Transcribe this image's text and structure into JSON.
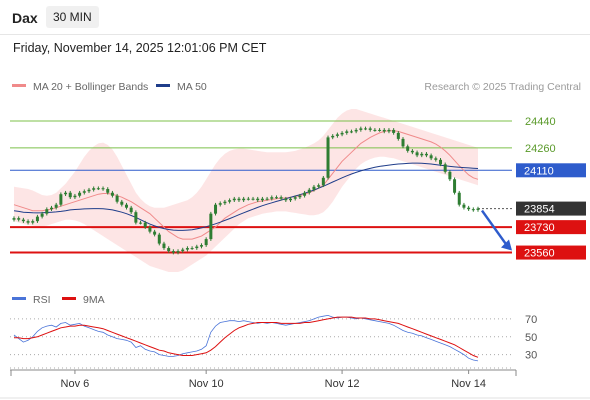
{
  "header": {
    "symbol": "Dax",
    "timeframe": "30 MIN",
    "datetime": "Friday, November 14, 2025 12:01:06 PM CET"
  },
  "colors": {
    "bb_fill": "#fde0e0",
    "ma20": "#f08a8a",
    "ma50": "#1f3d8a",
    "resistance": "#7cc04a",
    "pivot": "#2e5ccc",
    "support": "#dd1111",
    "candle": "#2e7d32",
    "rsi": "#4a74d8",
    "rsi_ma": "#dd1111",
    "arrow": "#2e5ccc"
  },
  "chart_data": [
    {
      "type": "candlestick",
      "x_tick_labels": [
        "Nov 6",
        "Nov 10",
        "Nov 12",
        "Nov 14"
      ],
      "legend": [
        {
          "label": "MA 20 + Bollinger Bands",
          "color": "#f08a8a"
        },
        {
          "label": "MA 50",
          "color": "#1f3d8a"
        }
      ],
      "watermark": "Research © 2025 Trading Central",
      "ylim": [
        23430,
        24580
      ],
      "close": [
        23790,
        23780,
        23770,
        23760,
        23770,
        23800,
        23820,
        23850,
        23860,
        23880,
        23950,
        23960,
        23930,
        23940,
        23960,
        23970,
        23980,
        23990,
        23990,
        23985,
        23960,
        23940,
        23900,
        23880,
        23860,
        23830,
        23760,
        23760,
        23730,
        23700,
        23680,
        23620,
        23590,
        23570,
        23560,
        23570,
        23580,
        23590,
        23590,
        23600,
        23610,
        23650,
        23820,
        23880,
        23890,
        23900,
        23910,
        23920,
        23910,
        23920,
        23920,
        23920,
        23910,
        23920,
        23920,
        23930,
        23930,
        23920,
        23910,
        23920,
        23930,
        23940,
        23960,
        23980,
        24000,
        24010,
        24060,
        24330,
        24340,
        24350,
        24360,
        24370,
        24370,
        24380,
        24390,
        24390,
        24380,
        24380,
        24380,
        24370,
        24380,
        24360,
        24320,
        24270,
        24240,
        24230,
        24210,
        24220,
        24210,
        24190,
        24180,
        24150,
        24100,
        24050,
        23960,
        23880,
        23860,
        23850,
        23845,
        23854
      ],
      "ma20": [
        23880,
        23870,
        23860,
        23850,
        23840,
        23840,
        23840,
        23845,
        23850,
        23860,
        23870,
        23880,
        23890,
        23900,
        23910,
        23920,
        23930,
        23940,
        23950,
        23955,
        23955,
        23950,
        23940,
        23930,
        23915,
        23900,
        23880,
        23860,
        23840,
        23820,
        23790,
        23760,
        23730,
        23700,
        23680,
        23660,
        23650,
        23650,
        23650,
        23660,
        23670,
        23690,
        23710,
        23730,
        23760,
        23790,
        23810,
        23830,
        23850,
        23865,
        23880,
        23890,
        23900,
        23905,
        23910,
        23915,
        23920,
        23925,
        23925,
        23930,
        23935,
        23940,
        23950,
        23960,
        23975,
        23990,
        24010,
        24050,
        24090,
        24130,
        24170,
        24200,
        24230,
        24260,
        24290,
        24310,
        24330,
        24345,
        24360,
        24370,
        24375,
        24375,
        24370,
        24360,
        24350,
        24340,
        24330,
        24320,
        24310,
        24300,
        24285,
        24265,
        24240,
        24210,
        24175,
        24140,
        24110,
        24080,
        24060,
        24050
      ],
      "ma50": [
        23840,
        23835,
        23830,
        23828,
        23826,
        23825,
        23826,
        23828,
        23830,
        23832,
        23835,
        23840,
        23845,
        23848,
        23850,
        23852,
        23853,
        23854,
        23854,
        23853,
        23850,
        23845,
        23838,
        23830,
        23820,
        23808,
        23795,
        23780,
        23765,
        23750,
        23738,
        23728,
        23720,
        23714,
        23710,
        23708,
        23708,
        23710,
        23713,
        23718,
        23725,
        23733,
        23742,
        23752,
        23763,
        23775,
        23787,
        23800,
        23813,
        23826,
        23838,
        23850,
        23862,
        23873,
        23883,
        23893,
        23902,
        23911,
        23920,
        23929,
        23938,
        23947,
        23957,
        23967,
        23978,
        23990,
        24003,
        24017,
        24032,
        24046,
        24060,
        24073,
        24085,
        24096,
        24106,
        24115,
        24123,
        24130,
        24136,
        24141,
        24145,
        24149,
        24152,
        24154,
        24156,
        24158,
        24158,
        24157,
        24155,
        24152,
        24148,
        24144,
        24140,
        24136,
        24133,
        24130,
        24128,
        24126,
        24124,
        24122
      ],
      "bb_upper": [
        24000,
        23995,
        23990,
        23985,
        23975,
        23960,
        23945,
        23940,
        23945,
        23960,
        23990,
        24020,
        24060,
        24100,
        24150,
        24200,
        24240,
        24270,
        24290,
        24295,
        24280,
        24250,
        24200,
        24140,
        24080,
        24020,
        23960,
        23920,
        23890,
        23870,
        23860,
        23860,
        23860,
        23870,
        23880,
        23890,
        23900,
        23910,
        23930,
        23960,
        24000,
        24050,
        24100,
        24150,
        24190,
        24220,
        24240,
        24250,
        24255,
        24255,
        24250,
        24245,
        24240,
        24235,
        24230,
        24230,
        24230,
        24230,
        24230,
        24235,
        24240,
        24250,
        24260,
        24275,
        24290,
        24310,
        24340,
        24380,
        24420,
        24460,
        24490,
        24510,
        24520,
        24520,
        24510,
        24500,
        24490,
        24480,
        24470,
        24460,
        24450,
        24440,
        24430,
        24420,
        24410,
        24400,
        24390,
        24380,
        24370,
        24360,
        24350,
        24340,
        24330,
        24320,
        24310,
        24300,
        24290,
        24280,
        24270,
        24260
      ],
      "bb_lower": [
        23770,
        23760,
        23750,
        23745,
        23740,
        23735,
        23735,
        23740,
        23750,
        23760,
        23770,
        23780,
        23780,
        23775,
        23765,
        23750,
        23730,
        23710,
        23690,
        23670,
        23650,
        23630,
        23610,
        23590,
        23570,
        23550,
        23530,
        23510,
        23490,
        23470,
        23460,
        23450,
        23440,
        23430,
        23430,
        23430,
        23440,
        23460,
        23480,
        23500,
        23520,
        23540,
        23570,
        23600,
        23630,
        23660,
        23690,
        23720,
        23750,
        23770,
        23790,
        23800,
        23810,
        23820,
        23825,
        23830,
        23835,
        23835,
        23835,
        23830,
        23825,
        23820,
        23815,
        23810,
        23810,
        23815,
        23830,
        23860,
        23900,
        23950,
        24000,
        24040,
        24080,
        24120,
        24150,
        24170,
        24185,
        24195,
        24200,
        24200,
        24195,
        24190,
        24180,
        24170,
        24160,
        24150,
        24140,
        24130,
        24120,
        24110,
        24100,
        24090,
        24080,
        24070,
        24060,
        24050,
        24040,
        24030,
        24020,
        24010
      ],
      "levels": [
        {
          "value": 24440,
          "label": "24440",
          "role": "resistance"
        },
        {
          "value": 24260,
          "label": "24260",
          "role": "resistance"
        },
        {
          "value": 24110,
          "label": "24110",
          "role": "pivot"
        },
        {
          "value": 23854,
          "label": "23854",
          "role": "last"
        },
        {
          "value": 23730,
          "label": "23730",
          "role": "support"
        },
        {
          "value": 23560,
          "label": "23560",
          "role": "support"
        }
      ]
    },
    {
      "type": "line",
      "legend": [
        {
          "label": "RSI",
          "color": "#4a74d8"
        },
        {
          "label": "9MA",
          "color": "#dd1111"
        }
      ],
      "ylim": [
        15,
        80
      ],
      "y_ticks": [
        70,
        50,
        30
      ],
      "y_tick_labels": [
        "70",
        "50",
        "30"
      ],
      "rsi": [
        52,
        48,
        44,
        46,
        50,
        56,
        60,
        62,
        63,
        61,
        65,
        66,
        63,
        64,
        65,
        62,
        60,
        58,
        56,
        55,
        52,
        50,
        48,
        47,
        46,
        44,
        38,
        40,
        36,
        34,
        33,
        30,
        29,
        28,
        28,
        29,
        31,
        32,
        33,
        34,
        36,
        40,
        55,
        62,
        66,
        67,
        68,
        68,
        67,
        68,
        67,
        66,
        65,
        66,
        65,
        66,
        65,
        64,
        63,
        64,
        65,
        66,
        67,
        68,
        70,
        72,
        73,
        74,
        72,
        71,
        72,
        72,
        71,
        70,
        71,
        70,
        69,
        68,
        67,
        66,
        65,
        63,
        60,
        57,
        55,
        54,
        52,
        51,
        49,
        47,
        45,
        43,
        41,
        39,
        36,
        33,
        30,
        26,
        24,
        23
      ],
      "rsi_ma": [
        49,
        49,
        48,
        48,
        49,
        50,
        52,
        54,
        56,
        58,
        60,
        61,
        62,
        62,
        63,
        63,
        62,
        61,
        60,
        59,
        57,
        55,
        53,
        51,
        49,
        47,
        45,
        43,
        41,
        39,
        37,
        35,
        34,
        32,
        31,
        30,
        29,
        29,
        29,
        30,
        31,
        32,
        35,
        39,
        44,
        49,
        53,
        57,
        60,
        62,
        64,
        65,
        66,
        66,
        66,
        66,
        66,
        65,
        65,
        65,
        65,
        65,
        66,
        66,
        67,
        68,
        69,
        70,
        71,
        72,
        72,
        72,
        72,
        71,
        71,
        71,
        70,
        70,
        69,
        68,
        67,
        66,
        65,
        63,
        61,
        59,
        57,
        55,
        53,
        51,
        49,
        47,
        45,
        43,
        41,
        38,
        35,
        32,
        29,
        27
      ]
    }
  ]
}
